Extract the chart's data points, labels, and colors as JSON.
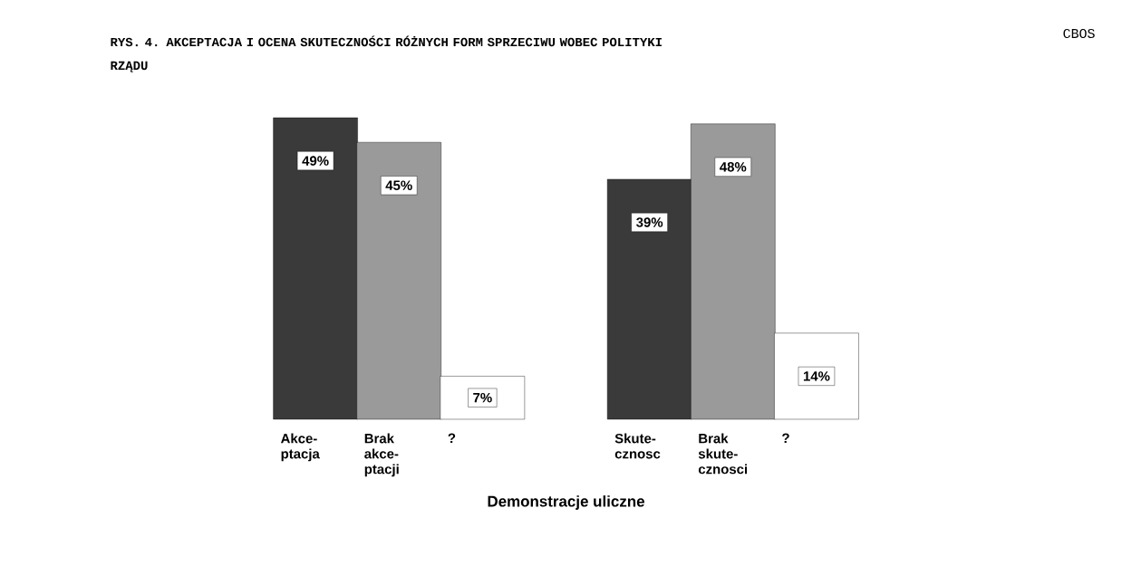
{
  "chart_data": {
    "type": "bar",
    "title": "RYS. 4. AKCEPTACJA I OCENA SKUTECZNOŚCI RÓŻNYCH FORM SPRZECIWU WOBEC POLITYKI RZĄDU",
    "xlabel": "Demonstracje uliczne",
    "categories": [
      "Akce- ptacja",
      "Brak akce- ptacji",
      "?",
      "Skute- cznosc",
      "Brak skute- cznosci",
      "?"
    ],
    "values": [
      49,
      45,
      7,
      39,
      48,
      14
    ],
    "colors": [
      "#3a3a3a",
      "#9a9a9a",
      "#ffffff",
      "#3a3a3a",
      "#9a9a9a",
      "#ffffff"
    ],
    "value_labels": [
      "49%",
      "45%",
      "7%",
      "39%",
      "48%",
      "14%"
    ],
    "annotations": [
      "CBOS"
    ]
  }
}
